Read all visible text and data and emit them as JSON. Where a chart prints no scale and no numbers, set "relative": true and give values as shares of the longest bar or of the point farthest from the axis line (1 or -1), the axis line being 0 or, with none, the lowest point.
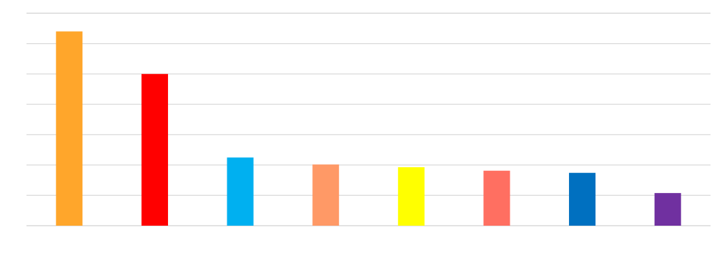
{
  "chart_data": {
    "type": "bar",
    "relative": true,
    "grid": "y",
    "categories": [
      null,
      null,
      null,
      null,
      null,
      null,
      null,
      null
    ],
    "values": [
      1,
      0.781,
      0.351,
      0.315,
      0.301,
      0.283,
      0.272,
      0.168
    ],
    "colors": [
      "#ffa62b",
      "#ff0000",
      "#00b0f0",
      "#ff9966",
      "#ffff00",
      "#ff6f61",
      "#0070c0",
      "#7030a0"
    ]
  }
}
